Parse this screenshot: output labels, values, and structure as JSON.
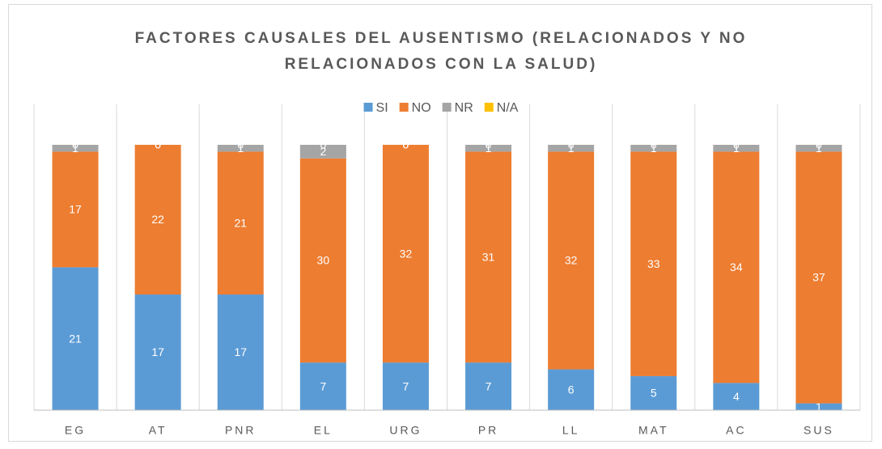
{
  "chart_data": {
    "type": "stacked_bar_100",
    "title": "FACTORES CAUSALES DEL AUSENTISMO (RELACIONADOS Y NO RELACIONADOS CON LA SALUD)",
    "categories": [
      "EG",
      "AT",
      "PNR",
      "EL",
      "URG",
      "PR",
      "LL",
      "MAT",
      "AC",
      "SUS"
    ],
    "series": [
      {
        "name": "SI",
        "color": "#5b9bd5",
        "values": [
          21,
          17,
          17,
          7,
          7,
          7,
          6,
          5,
          4,
          1
        ]
      },
      {
        "name": "NO",
        "color": "#ed7d31",
        "values": [
          17,
          22,
          21,
          30,
          32,
          31,
          32,
          33,
          34,
          37
        ]
      },
      {
        "name": "NR",
        "color": "#a5a5a5",
        "values": [
          1,
          0,
          1,
          2,
          0,
          1,
          1,
          1,
          1,
          1
        ]
      },
      {
        "name": "N/A",
        "color": "#ffc000",
        "values": [
          0,
          0,
          0,
          0,
          0,
          0,
          0,
          0,
          0,
          0
        ]
      }
    ],
    "legend": "top",
    "grid": true
  }
}
